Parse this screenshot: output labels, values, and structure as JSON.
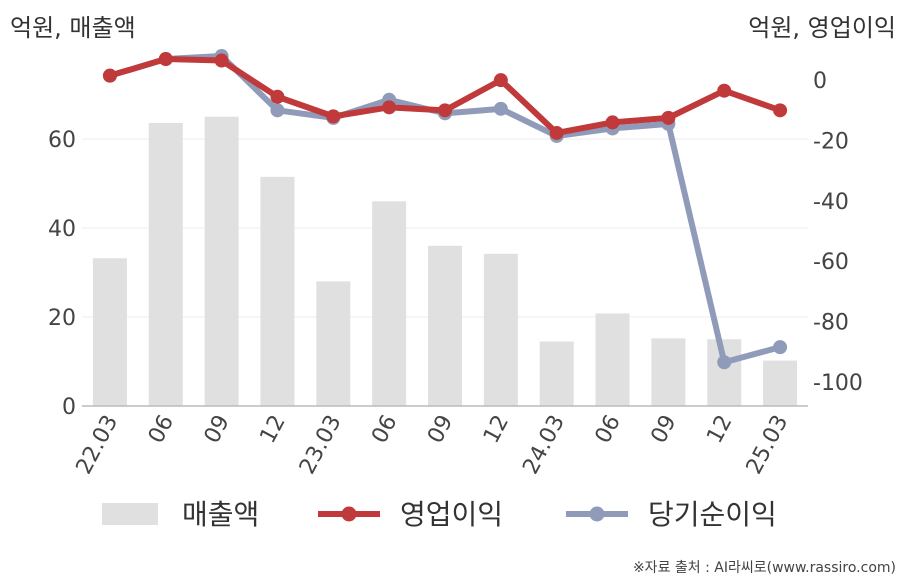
{
  "chart_data": {
    "type": "bar+line",
    "categories": [
      "22.03",
      "06",
      "09",
      "12",
      "23.03",
      "06",
      "09",
      "12",
      "24.03",
      "06",
      "09",
      "12",
      "25.03"
    ],
    "left_axis": {
      "title": "억원, 매출액",
      "ylim": [
        0,
        80
      ],
      "ticks": [
        "0",
        "20",
        "40",
        "60"
      ]
    },
    "right_axis": {
      "title": "억원, 영업이익",
      "ylim": [
        -108,
        10
      ],
      "ticks": [
        "0",
        "-20",
        "-40",
        "-60",
        "-80",
        "-100"
      ]
    },
    "series": [
      {
        "name": "매출액",
        "type": "bar",
        "axis": "left",
        "color": "#e0e0e0",
        "values": [
          33.2,
          63.6,
          65.0,
          51.5,
          28.0,
          46.0,
          36.0,
          34.2,
          14.5,
          20.8,
          15.2,
          15.0,
          10.2
        ]
      },
      {
        "name": "영업이익",
        "type": "line",
        "axis": "right",
        "color": "#c0393b",
        "values": [
          1.5,
          7.0,
          6.5,
          -5.5,
          -12.0,
          -9.0,
          -10.0,
          0.0,
          -17.5,
          -14.0,
          -12.5,
          -3.5,
          -10.0
        ]
      },
      {
        "name": "당기순이익",
        "type": "line",
        "axis": "right",
        "color": "#8f9bb8",
        "values": [
          1.5,
          7.0,
          8.0,
          -10.0,
          -12.5,
          -6.5,
          -11.0,
          -9.5,
          -18.5,
          -16.0,
          -14.5,
          -93.5,
          -88.5
        ]
      }
    ],
    "grid": true,
    "legend": "bottom"
  },
  "source_text": "※자료 출처 : AI라씨로(www.rassiro.com)"
}
